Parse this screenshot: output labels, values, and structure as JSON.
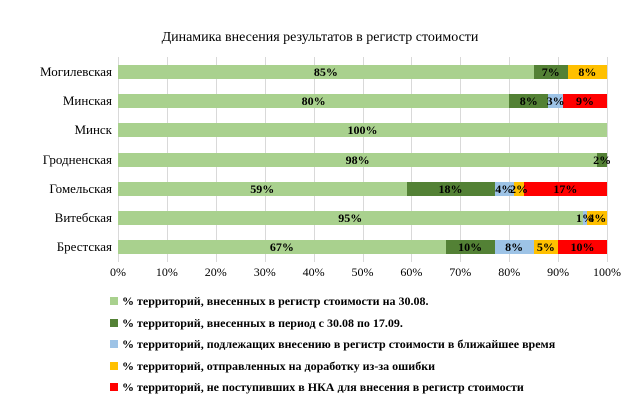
{
  "chart_data": {
    "type": "bar",
    "orientation": "horizontal-stacked",
    "title": "Динамика внесения результатов в регистр стоимости",
    "categories": [
      "Могилевская",
      "Минская",
      "Минск",
      "Гродненская",
      "Гомельская",
      "Витебская",
      "Брестская"
    ],
    "series": [
      {
        "name": "% территорий, внесенных в регистр стоимости на 30.08.",
        "color": "#A9D18E",
        "values": [
          85,
          80,
          100,
          98,
          59,
          95,
          67
        ]
      },
      {
        "name": "% территорий, внесенных в период с 30.08 по 17.09.",
        "color": "#538135",
        "values": [
          7,
          8,
          0,
          2,
          18,
          0,
          10
        ]
      },
      {
        "name": "% территорий, подлежащих внесению в регистр стоимости в ближайшее время",
        "color": "#9DC3E6",
        "values": [
          0,
          3,
          0,
          0,
          4,
          1,
          8
        ]
      },
      {
        "name": "% территорий, отправленных на доработку из-за ошибки",
        "color": "#FFC000",
        "values": [
          8,
          0,
          0,
          0,
          2,
          4,
          5
        ]
      },
      {
        "name": "% территорий, не поступивших в НКА для внесения в регистр стоимости",
        "color": "#FF0000",
        "values": [
          0,
          9,
          0,
          0,
          17,
          0,
          10
        ]
      }
    ],
    "x_ticks": [
      "0%",
      "10%",
      "20%",
      "30%",
      "40%",
      "50%",
      "60%",
      "70%",
      "80%",
      "90%",
      "100%"
    ],
    "xlim": [
      0,
      100
    ],
    "data_label_suffix": "%",
    "grid": "vertical",
    "gridline_color": "#D9D9D9",
    "legend_position": "bottom-left"
  }
}
